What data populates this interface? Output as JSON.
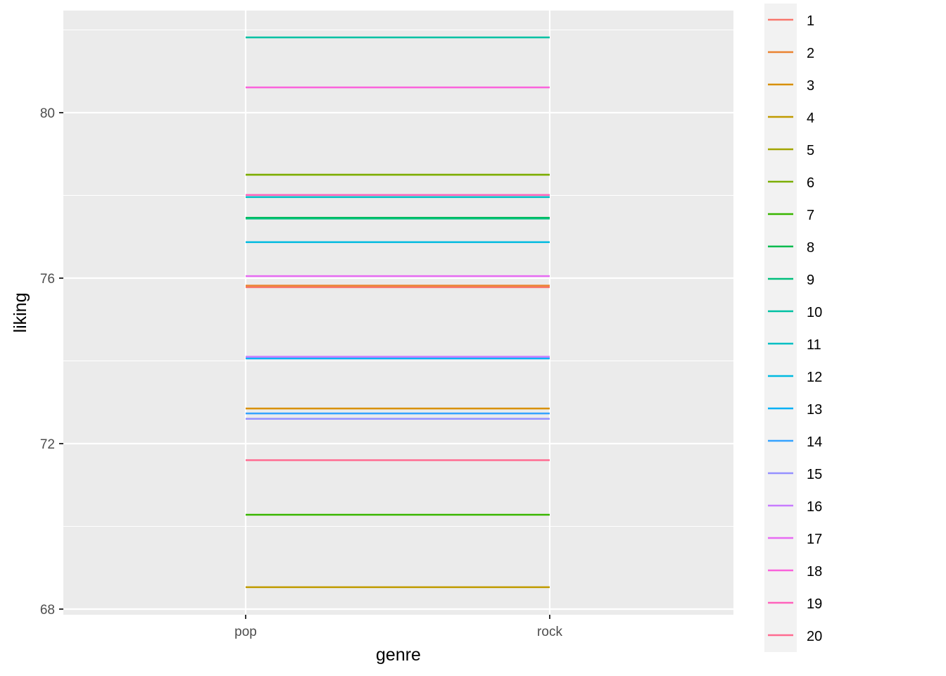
{
  "chart_data": {
    "type": "line",
    "title": "",
    "xlabel": "genre",
    "ylabel": "liking",
    "categories": [
      "pop",
      "rock"
    ],
    "yticks": [
      "68",
      "72",
      "76",
      "80"
    ],
    "ylim": [
      67.9,
      82.3
    ],
    "legend_position": "right",
    "series": [
      {
        "name": "1",
        "color": "#F8766D",
        "values": [
          75.78,
          75.78
        ]
      },
      {
        "name": "2",
        "color": "#EA8331",
        "values": [
          75.82,
          75.82
        ]
      },
      {
        "name": "3",
        "color": "#D89000",
        "values": [
          72.85,
          72.85
        ]
      },
      {
        "name": "4",
        "color": "#C09B00",
        "values": [
          68.53,
          68.53
        ]
      },
      {
        "name": "5",
        "color": "#A3A500",
        "values": [
          78.5,
          78.5
        ]
      },
      {
        "name": "6",
        "color": "#7CAE00",
        "values": [
          78.5,
          78.5
        ]
      },
      {
        "name": "7",
        "color": "#39B600",
        "values": [
          70.28,
          70.28
        ]
      },
      {
        "name": "8",
        "color": "#00BB4E",
        "values": [
          77.46,
          77.46
        ]
      },
      {
        "name": "9",
        "color": "#00BF7D",
        "values": [
          77.44,
          77.44
        ]
      },
      {
        "name": "10",
        "color": "#00C1A3",
        "values": [
          81.82,
          81.82
        ]
      },
      {
        "name": "11",
        "color": "#00BFC4",
        "values": [
          77.96,
          77.96
        ]
      },
      {
        "name": "12",
        "color": "#00BAE0",
        "values": [
          76.87,
          76.87
        ]
      },
      {
        "name": "13",
        "color": "#00B0F6",
        "values": [
          74.06,
          74.06
        ]
      },
      {
        "name": "14",
        "color": "#35A2FF",
        "values": [
          72.73,
          72.73
        ]
      },
      {
        "name": "15",
        "color": "#9590FF",
        "values": [
          72.6,
          72.6
        ]
      },
      {
        "name": "16",
        "color": "#C77CFF",
        "values": [
          74.1,
          74.1
        ]
      },
      {
        "name": "17",
        "color": "#E76BF3",
        "values": [
          76.05,
          76.05
        ]
      },
      {
        "name": "18",
        "color": "#FA62DB",
        "values": [
          80.61,
          80.61
        ]
      },
      {
        "name": "19",
        "color": "#FF62BC",
        "values": [
          78.01,
          78.01
        ]
      },
      {
        "name": "20",
        "color": "#FF6C91",
        "values": [
          71.6,
          71.6
        ]
      }
    ]
  }
}
